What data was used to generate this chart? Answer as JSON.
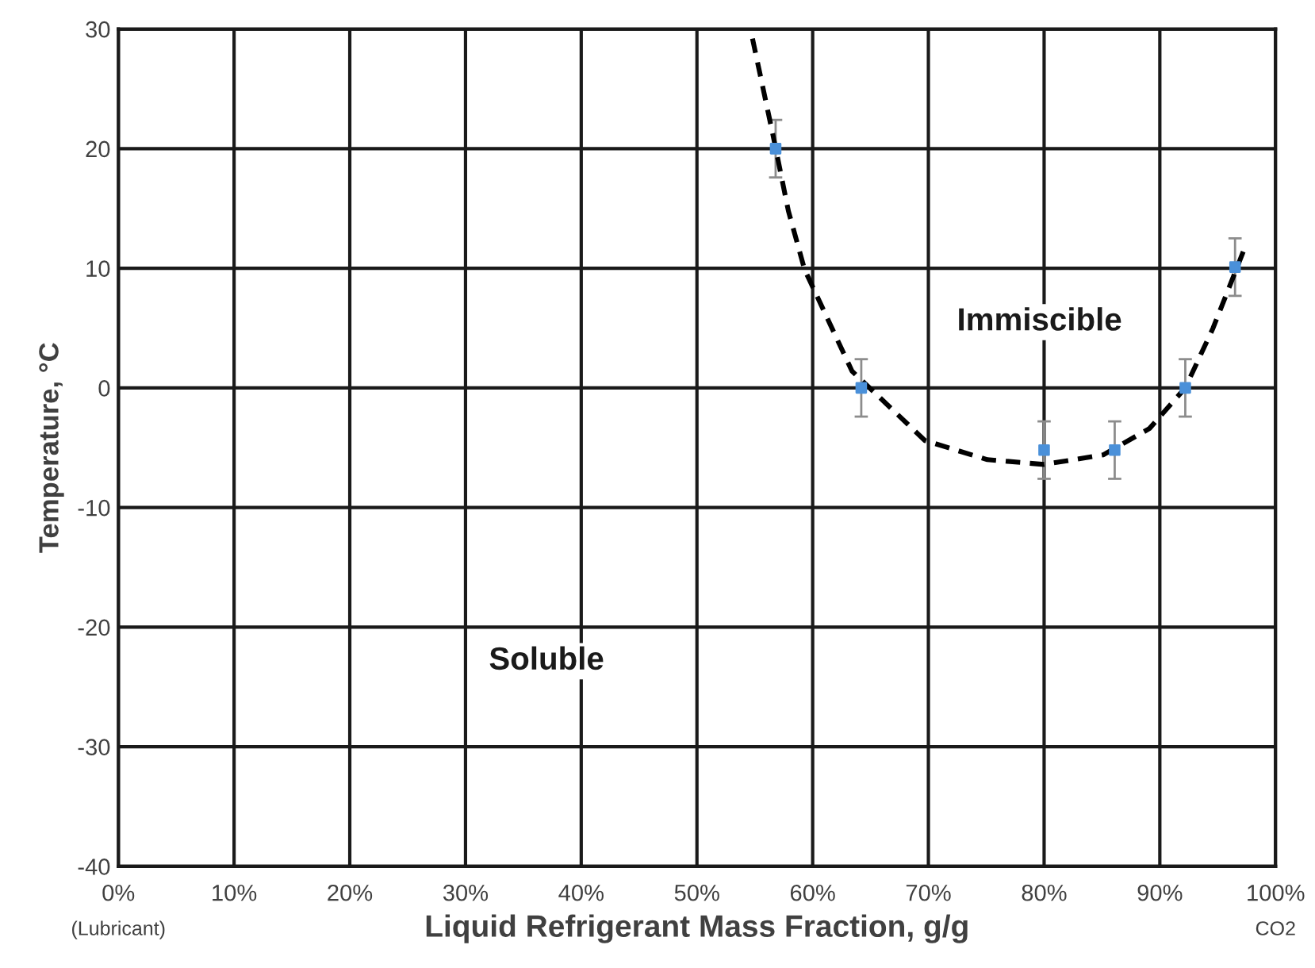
{
  "chart_data": {
    "type": "scatter",
    "xlabel": "Liquid Refrigerant Mass Fraction, g/g",
    "ylabel": "Temperature, °C",
    "xlim": [
      0,
      100
    ],
    "ylim": [
      -40,
      30
    ],
    "xticks": [
      {
        "value": 0,
        "label": "0%"
      },
      {
        "value": 10,
        "label": "10%"
      },
      {
        "value": 20,
        "label": "20%"
      },
      {
        "value": 30,
        "label": "30%"
      },
      {
        "value": 40,
        "label": "40%"
      },
      {
        "value": 50,
        "label": "50%"
      },
      {
        "value": 60,
        "label": "60%"
      },
      {
        "value": 70,
        "label": "70%"
      },
      {
        "value": 80,
        "label": "80%"
      },
      {
        "value": 90,
        "label": "90%"
      },
      {
        "value": 100,
        "label": "100%"
      }
    ],
    "yticks": [
      -40,
      -30,
      -20,
      -10,
      0,
      10,
      20,
      30
    ],
    "grid": true,
    "legend": false,
    "series": [
      {
        "color": "#4a90d9",
        "marker": "square",
        "x": [
          56.8,
          64.2,
          80.0,
          86.1,
          92.2,
          96.5
        ],
        "values": [
          20,
          0,
          -5.2,
          -5.2,
          0,
          10.1
        ],
        "errors": [
          2.4,
          2.4,
          2.4,
          2.4,
          2.4,
          2.4
        ]
      },
      {
        "type": "line",
        "color": "#000000",
        "marker": "none",
        "line_style": "dashed",
        "x": [
          54.8,
          56.6,
          57.9,
          59.3,
          63.4,
          69.7,
          75.1,
          80.0,
          85.1,
          89.1,
          92.2,
          94.6,
          97.5
        ],
        "values": [
          29.2,
          21,
          14.8,
          9.9,
          1.4,
          -4.4,
          -6.0,
          -6.4,
          -5.6,
          -3.4,
          0,
          5.0,
          12.1
        ]
      }
    ],
    "annotations": [
      "Immiscible",
      "Soluble",
      "(Lubricant)",
      "CO2"
    ]
  }
}
